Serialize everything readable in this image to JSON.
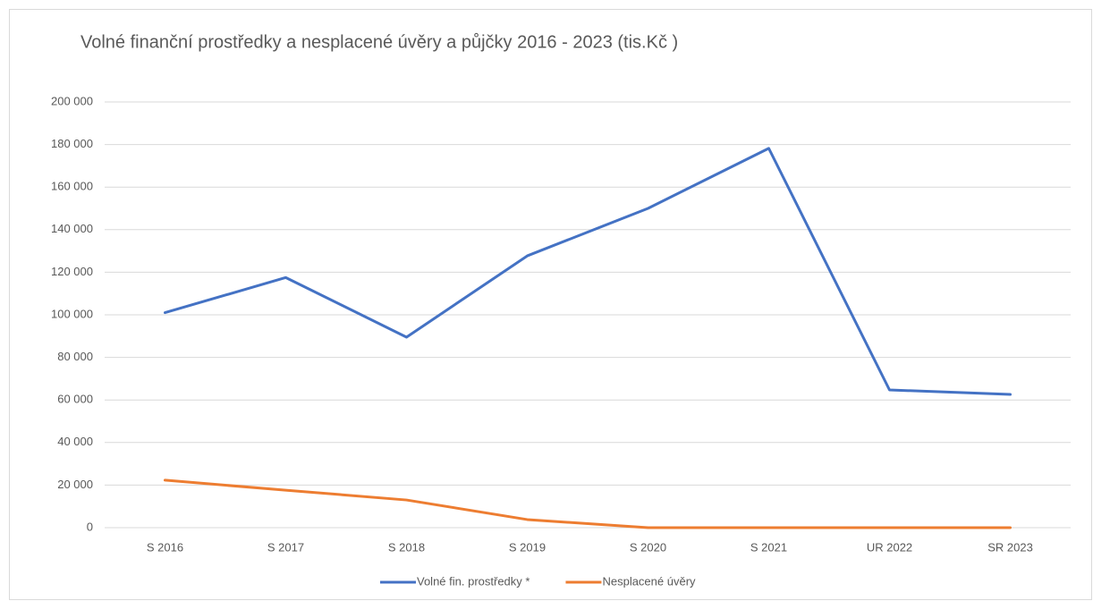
{
  "chart_data": {
    "type": "line",
    "title": "Volné finanční prostředky a nesplacené úvěry a půjčky  2016 - 2023  (tis.Kč )",
    "categories": [
      "S 2016",
      "S 2017",
      "S 2018",
      "S 2019",
      "S 2020",
      "S 2021",
      "UR 2022",
      "SR 2023"
    ],
    "series": [
      {
        "name": "Volné fin. prostředky *",
        "color": "#4472c4",
        "values": [
          101000,
          117500,
          89500,
          127700,
          150000,
          178200,
          64700,
          62600
        ]
      },
      {
        "name": "Nesplacené úvěry",
        "color": "#ed7d31",
        "values": [
          22300,
          17600,
          13000,
          3800,
          0,
          0,
          0,
          0
        ]
      }
    ],
    "ylim": [
      0,
      200000
    ],
    "yticks": [
      0,
      {
        "value": 20000,
        "label": "20 000"
      },
      {
        "value": 40000,
        "label": "40 000"
      },
      {
        "value": 60000,
        "label": "60 000"
      },
      {
        "value": 80000,
        "label": "80 000"
      },
      {
        "value": 100000,
        "label": "100 000"
      },
      {
        "value": 120000,
        "label": "120 000"
      },
      {
        "value": 140000,
        "label": "140 000"
      },
      {
        "value": 160000,
        "label": "160 000"
      },
      {
        "value": 180000,
        "label": "180 000"
      },
      {
        "value": 200000,
        "label": "200 000"
      }
    ],
    "grid": true,
    "legend": "bottom"
  }
}
